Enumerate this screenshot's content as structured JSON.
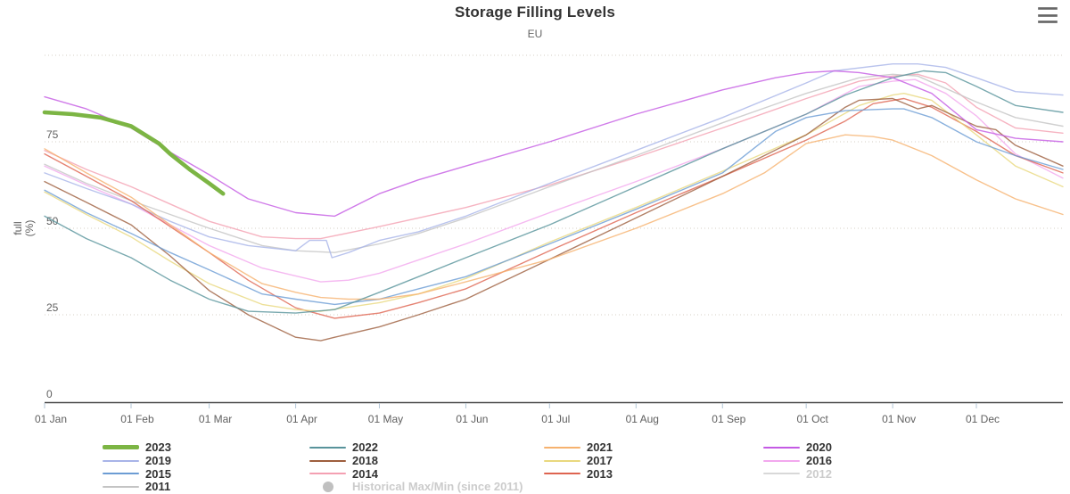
{
  "header": {
    "title": "Storage Filling Levels",
    "subtitle": "EU"
  },
  "export_menu": {
    "icon": "hamburger-menu-icon"
  },
  "y_axis": {
    "title_lines": [
      "full",
      "(%)"
    ],
    "tick_labels": [
      "0",
      "25",
      "50",
      "75"
    ],
    "gridline_values": [
      25,
      50,
      75,
      100
    ],
    "range": [
      0,
      100
    ]
  },
  "x_axis": {
    "tick_labels": [
      "01 Jan",
      "01 Feb",
      "01 Mar",
      "01 Apr",
      "01 May",
      "01 Jun",
      "01 Jul",
      "01 Aug",
      "01 Sep",
      "01 Oct",
      "01 Nov",
      "01 Dec"
    ],
    "tick_days": [
      0,
      31,
      59,
      90,
      120,
      151,
      181,
      212,
      243,
      273,
      304,
      334
    ],
    "range_days": [
      0,
      365
    ]
  },
  "colors": {
    "grid": "#d5cfc5",
    "axis_line": "#4a4a4a",
    "tick": "#b3c6d6",
    "axis_label": "#606060",
    "title": "#333333",
    "legend_label": "#333333",
    "legend_disabled": "#cccccc"
  },
  "legend": {
    "grid": [
      [
        "2023",
        "2022",
        "2021",
        "2020"
      ],
      [
        "2019",
        "2018",
        "2017",
        "2016"
      ],
      [
        "2015",
        "2014",
        "2013",
        "2012"
      ],
      [
        "2011",
        "Historical Max/Min (since 2011)"
      ]
    ]
  },
  "chart_data": {
    "type": "line",
    "title": "Storage Filling Levels",
    "subtitle": "EU",
    "xlabel": "",
    "ylabel": "full (%)",
    "ylim": [
      0,
      100
    ],
    "x_unit": "day of year (0 = 01 Jan, 365 = 31 Dec)",
    "grid": "dotted horizontal",
    "legend_position": "bottom",
    "series": [
      {
        "name": "2016",
        "color": "#f2a8ee",
        "line_width": 1.4,
        "disabled": false,
        "marker": "line",
        "x_days": [
          0,
          15,
          31,
          45,
          59,
          78,
          99,
          109,
          120,
          151,
          181,
          212,
          243,
          273,
          292,
          304,
          312,
          323,
          334,
          348,
          365
        ],
        "values": [
          68,
          62.5,
          57,
          51,
          45,
          38.5,
          34.5,
          35,
          37,
          45.5,
          54.5,
          63.5,
          73,
          83,
          91,
          92.5,
          93,
          89,
          82.5,
          71.5,
          64.5
        ]
      },
      {
        "name": "2014",
        "color": "#f4a0b2",
        "line_width": 1.4,
        "disabled": false,
        "marker": "line",
        "x_days": [
          0,
          15,
          31,
          45,
          59,
          78,
          90,
          99,
          120,
          134,
          151,
          181,
          212,
          243,
          273,
          292,
          304,
          313,
          323,
          334,
          348,
          365
        ],
        "values": [
          72.5,
          67,
          62,
          57,
          52,
          47.5,
          47,
          47,
          50.5,
          53,
          56,
          62.5,
          70.5,
          79,
          87.5,
          92.5,
          94,
          94.5,
          92,
          85,
          79,
          77.5
        ]
      },
      {
        "name": "2011",
        "color": "#c4c4c4",
        "line_width": 1.4,
        "disabled": false,
        "marker": "line",
        "x_days": [
          0,
          15,
          31,
          45,
          59,
          78,
          90,
          104,
          120,
          134,
          151,
          181,
          212,
          243,
          273,
          292,
          304,
          313,
          334,
          348,
          365
        ],
        "values": [
          68.5,
          63,
          58,
          54,
          50,
          45,
          43.5,
          43,
          45.5,
          48.5,
          53,
          62,
          71,
          80.5,
          89,
          93.5,
          94.5,
          94,
          86.5,
          82,
          79.5
        ]
      },
      {
        "name": "2019",
        "color": "#a8b4e8",
        "line_width": 1.4,
        "disabled": false,
        "marker": "line",
        "x_days": [
          0,
          15,
          31,
          45,
          59,
          73,
          90,
          95,
          101,
          103,
          109,
          120,
          134,
          151,
          181,
          212,
          243,
          273,
          283,
          304,
          313,
          323,
          334,
          348,
          365
        ],
        "values": [
          66,
          61.5,
          57,
          52,
          47.5,
          45,
          43.5,
          46.5,
          46.5,
          41.5,
          43,
          46.5,
          49,
          53.5,
          63,
          72.5,
          82,
          92,
          95.5,
          97.5,
          97.5,
          96.5,
          93.5,
          89.5,
          88.5
        ]
      },
      {
        "name": "2013",
        "color": "#de6450",
        "line_width": 1.4,
        "disabled": false,
        "marker": "line",
        "x_days": [
          0,
          15,
          31,
          45,
          59,
          73,
          90,
          104,
          120,
          134,
          151,
          181,
          212,
          243,
          273,
          287,
          297,
          308,
          318,
          334,
          348,
          365
        ],
        "values": [
          71.5,
          65,
          58,
          50.5,
          43,
          35,
          27,
          24,
          25.5,
          28.5,
          32.5,
          43.5,
          54.5,
          65,
          75.5,
          81,
          86,
          87.5,
          85,
          78,
          71,
          66
        ]
      },
      {
        "name": "2017",
        "color": "#e9d87e",
        "line_width": 1.4,
        "disabled": false,
        "marker": "line",
        "x_days": [
          0,
          15,
          31,
          45,
          59,
          78,
          90,
          99,
          120,
          134,
          151,
          181,
          212,
          243,
          273,
          292,
          304,
          308,
          318,
          334,
          348,
          365
        ],
        "values": [
          60.5,
          54,
          47.5,
          40.5,
          34,
          28,
          26.5,
          26,
          28.5,
          31,
          35.5,
          46,
          56,
          66.5,
          77,
          85.5,
          88.5,
          89,
          87,
          77,
          68,
          62
        ]
      },
      {
        "name": "2018",
        "color": "#9e5f3e",
        "line_width": 1.4,
        "disabled": false,
        "marker": "line",
        "x_days": [
          0,
          15,
          31,
          45,
          59,
          73,
          90,
          99,
          104,
          120,
          134,
          151,
          181,
          212,
          243,
          273,
          287,
          292,
          304,
          313,
          318,
          334,
          341,
          348,
          365
        ],
        "values": [
          63.5,
          57.5,
          51,
          42,
          32,
          25,
          18.5,
          17.5,
          18.5,
          21.5,
          25,
          29.5,
          41,
          53,
          65,
          77,
          85,
          87,
          87.5,
          84.5,
          85.5,
          79.5,
          78.5,
          74,
          68
        ]
      },
      {
        "name": "2015",
        "color": "#6c9cd4",
        "line_width": 1.4,
        "disabled": false,
        "marker": "line",
        "x_days": [
          0,
          15,
          31,
          45,
          59,
          78,
          90,
          104,
          120,
          134,
          151,
          181,
          212,
          243,
          262,
          273,
          287,
          304,
          308,
          318,
          334,
          348,
          365
        ],
        "values": [
          61,
          54.5,
          48.5,
          43,
          38,
          31,
          29.5,
          28,
          29.5,
          32.5,
          36,
          45.5,
          55.5,
          66,
          78,
          82,
          84,
          84.5,
          84.5,
          82,
          75,
          71,
          67
        ]
      },
      {
        "name": "2021",
        "color": "#f6b26e",
        "line_width": 1.4,
        "disabled": false,
        "marker": "line",
        "x_days": [
          0,
          15,
          31,
          45,
          59,
          78,
          90,
          99,
          109,
          120,
          134,
          151,
          181,
          212,
          243,
          258,
          273,
          287,
          297,
          304,
          318,
          334,
          348,
          365
        ],
        "values": [
          73,
          66,
          59,
          51,
          43,
          34,
          31.5,
          30,
          29.5,
          29.5,
          31,
          34.5,
          41,
          50,
          60,
          66,
          74.5,
          77,
          76.5,
          75.5,
          71,
          64,
          58.5,
          54
        ]
      },
      {
        "name": "2022",
        "color": "#58939b",
        "line_width": 1.4,
        "disabled": false,
        "marker": "line",
        "x_days": [
          0,
          15,
          31,
          45,
          59,
          73,
          90,
          104,
          120,
          134,
          151,
          181,
          212,
          243,
          273,
          287,
          304,
          315,
          323,
          334,
          348,
          365
        ],
        "values": [
          53.5,
          47,
          41.5,
          35,
          29.5,
          26,
          25.5,
          26.5,
          31.5,
          36,
          41.5,
          51,
          62,
          73,
          83,
          88.5,
          93.5,
          95.5,
          95,
          91,
          85.5,
          83.5
        ]
      },
      {
        "name": "2020",
        "color": "#c45ae4",
        "line_width": 1.4,
        "disabled": false,
        "marker": "line",
        "x_days": [
          0,
          15,
          31,
          45,
          59,
          73,
          90,
          104,
          120,
          134,
          151,
          181,
          212,
          243,
          262,
          273,
          283,
          292,
          304,
          318,
          334,
          348,
          365
        ],
        "values": [
          88,
          84.5,
          79,
          72,
          65.5,
          58.5,
          54.5,
          53.5,
          60,
          64,
          68,
          75,
          83,
          90,
          93.5,
          95,
          95.5,
          95,
          93.5,
          89,
          78.5,
          76,
          75
        ]
      },
      {
        "name": "2023",
        "color": "#7cb544",
        "line_width": 4.6,
        "disabled": false,
        "marker": "line",
        "x_days": [
          0,
          10,
          20,
          31,
          41,
          45,
          52,
          59,
          64
        ],
        "values": [
          83.5,
          83,
          82,
          79.5,
          74.5,
          71.5,
          67,
          63,
          60
        ]
      },
      {
        "name": "2012",
        "color": "#d8d8d8",
        "line_width": 1.4,
        "disabled": true,
        "marker": "line",
        "x_days": [],
        "values": []
      },
      {
        "name": "Historical Max/Min (since 2011)",
        "color": "#c0c0c0",
        "line_width": 0,
        "disabled": true,
        "marker": "circle",
        "x_days": [],
        "values": []
      }
    ]
  }
}
